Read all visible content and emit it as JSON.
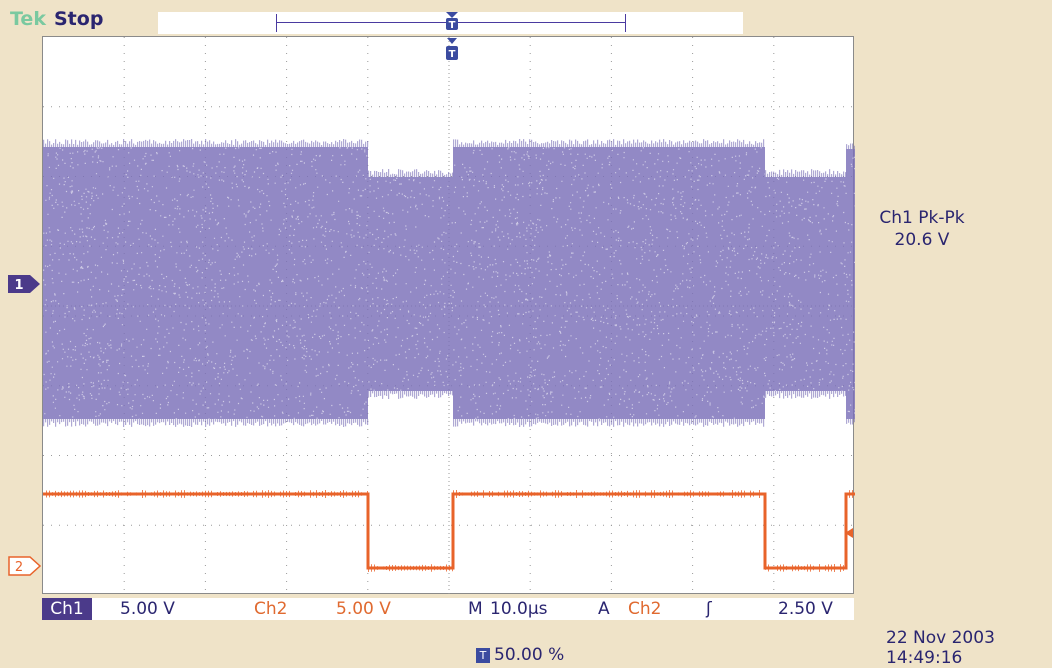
{
  "header": {
    "brand": "Tek",
    "state": "Stop"
  },
  "markers": {
    "ch1": "1",
    "ch2": "2",
    "trigger": "T"
  },
  "measurement": {
    "label": "Ch1 Pk-Pk",
    "value": "20.6 V"
  },
  "readouts": {
    "ch1_tag": "Ch1",
    "ch1_scale": "5.00 V",
    "ch2_tag": "Ch2",
    "ch2_scale": "5.00 V",
    "time_prefix": "M",
    "time_scale": "10.0µs",
    "trigger_prefix": "A",
    "trigger_source": "Ch2",
    "trigger_slope": "ʃ",
    "trigger_level": "2.50 V",
    "trigger_position": "50.00 %"
  },
  "timestamp": {
    "date": "22 Nov 2003",
    "time": "14:49:16"
  },
  "colors": {
    "ch1": "#7a6fb8",
    "ch2": "#e8632a",
    "text": "#2a2570",
    "background": "#efe3c8"
  }
}
